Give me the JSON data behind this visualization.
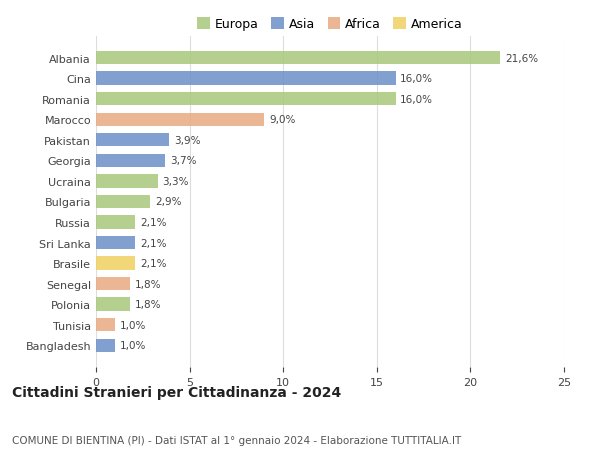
{
  "countries": [
    "Albania",
    "Cina",
    "Romania",
    "Marocco",
    "Pakistan",
    "Georgia",
    "Ucraina",
    "Bulgaria",
    "Russia",
    "Sri Lanka",
    "Brasile",
    "Senegal",
    "Polonia",
    "Tunisia",
    "Bangladesh"
  ],
  "values": [
    21.6,
    16.0,
    16.0,
    9.0,
    3.9,
    3.7,
    3.3,
    2.9,
    2.1,
    2.1,
    2.1,
    1.8,
    1.8,
    1.0,
    1.0
  ],
  "labels": [
    "21,6%",
    "16,0%",
    "16,0%",
    "9,0%",
    "3,9%",
    "3,7%",
    "3,3%",
    "2,9%",
    "2,1%",
    "2,1%",
    "2,1%",
    "1,8%",
    "1,8%",
    "1,0%",
    "1,0%"
  ],
  "continents": [
    "Europa",
    "Asia",
    "Europa",
    "Africa",
    "Asia",
    "Asia",
    "Europa",
    "Europa",
    "Europa",
    "Asia",
    "America",
    "Africa",
    "Europa",
    "Africa",
    "Asia"
  ],
  "continent_colors": {
    "Europa": "#a8c87a",
    "Asia": "#6b90c8",
    "Africa": "#e8aa80",
    "America": "#f0d060"
  },
  "legend_order": [
    "Europa",
    "Asia",
    "Africa",
    "America"
  ],
  "title": "Cittadini Stranieri per Cittadinanza - 2024",
  "subtitle": "COMUNE DI BIENTINA (PI) - Dati ISTAT al 1° gennaio 2024 - Elaborazione TUTTITALIA.IT",
  "xlim": [
    0,
    25
  ],
  "xticks": [
    0,
    5,
    10,
    15,
    20,
    25
  ],
  "background_color": "#ffffff",
  "grid_color": "#dddddd",
  "bar_height": 0.65,
  "title_fontsize": 10,
  "subtitle_fontsize": 7.5,
  "label_fontsize": 7.5,
  "tick_fontsize": 8,
  "legend_fontsize": 9
}
